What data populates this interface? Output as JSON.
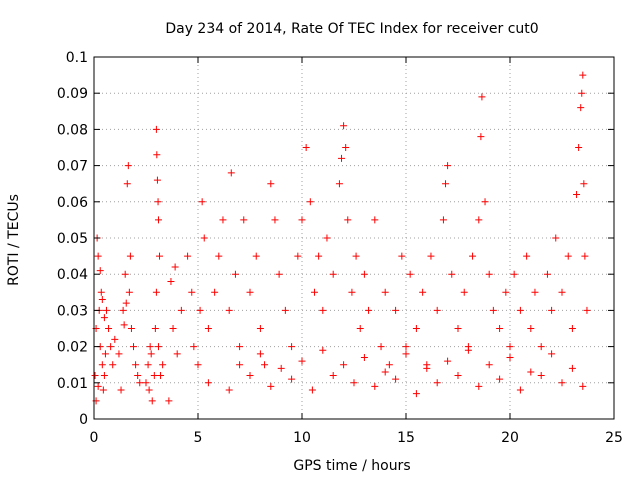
{
  "chart_data": {
    "type": "scatter",
    "title": "Day 234 of 2014, Rate Of TEC Index for receiver cut0",
    "xlabel": "GPS time / hours",
    "ylabel": "ROTI / TECUs",
    "xlim": [
      0,
      25
    ],
    "ylim": [
      0,
      0.1
    ],
    "xticks": [
      0,
      5,
      10,
      15,
      20,
      25
    ],
    "xtick_labels": [
      "0",
      "5",
      "10",
      "15",
      "20",
      "25"
    ],
    "yticks": [
      0,
      0.01,
      0.02,
      0.03,
      0.04,
      0.05,
      0.06,
      0.07,
      0.08,
      0.09,
      0.1
    ],
    "ytick_labels": [
      "0",
      "0.01",
      "0.02",
      "0.03",
      "0.04",
      "0.05",
      "0.06",
      "0.07",
      "0.08",
      "0.09",
      "0.1"
    ],
    "grid": true,
    "marker": "+",
    "color": "#ff0000",
    "series": [
      {
        "values": [
          [
            0.05,
            0.012
          ],
          [
            0.1,
            0.025
          ],
          [
            0.15,
            0.05
          ],
          [
            0.2,
            0.045
          ],
          [
            0.25,
            0.03
          ],
          [
            0.3,
            0.02
          ],
          [
            0.35,
            0.035
          ],
          [
            0.4,
            0.015
          ],
          [
            0.45,
            0.008
          ],
          [
            0.5,
            0.028
          ],
          [
            0.55,
            0.018
          ],
          [
            0.1,
            0.005
          ],
          [
            0.2,
            0.009
          ],
          [
            0.3,
            0.041
          ],
          [
            0.4,
            0.033
          ],
          [
            0.5,
            0.012
          ],
          [
            0.6,
            0.03
          ],
          [
            0.7,
            0.025
          ],
          [
            0.8,
            0.02
          ],
          [
            0.9,
            0.015
          ],
          [
            1.0,
            0.022
          ],
          [
            1.2,
            0.018
          ],
          [
            1.4,
            0.03
          ],
          [
            1.5,
            0.04
          ],
          [
            1.6,
            0.065
          ],
          [
            1.65,
            0.07
          ],
          [
            1.7,
            0.035
          ],
          [
            1.8,
            0.025
          ],
          [
            1.9,
            0.02
          ],
          [
            2.0,
            0.015
          ],
          [
            2.1,
            0.012
          ],
          [
            2.2,
            0.01
          ],
          [
            1.3,
            0.008
          ],
          [
            1.45,
            0.026
          ],
          [
            1.55,
            0.032
          ],
          [
            1.75,
            0.045
          ],
          [
            2.5,
            0.01
          ],
          [
            2.6,
            0.015
          ],
          [
            2.7,
            0.02
          ],
          [
            2.8,
            0.005
          ],
          [
            2.9,
            0.012
          ],
          [
            3.0,
            0.08
          ],
          [
            3.02,
            0.073
          ],
          [
            3.05,
            0.066
          ],
          [
            3.08,
            0.06
          ],
          [
            3.1,
            0.055
          ],
          [
            3.0,
            0.035
          ],
          [
            3.1,
            0.02
          ],
          [
            3.2,
            0.012
          ],
          [
            2.65,
            0.008
          ],
          [
            2.75,
            0.018
          ],
          [
            2.95,
            0.025
          ],
          [
            3.15,
            0.045
          ],
          [
            3.3,
            0.015
          ],
          [
            3.6,
            0.005
          ],
          [
            3.7,
            0.038
          ],
          [
            3.8,
            0.025
          ],
          [
            3.9,
            0.042
          ],
          [
            4.0,
            0.018
          ],
          [
            4.2,
            0.03
          ],
          [
            4.5,
            0.045
          ],
          [
            4.7,
            0.035
          ],
          [
            4.8,
            0.02
          ],
          [
            5.0,
            0.015
          ],
          [
            5.1,
            0.03
          ],
          [
            5.2,
            0.06
          ],
          [
            5.3,
            0.05
          ],
          [
            5.5,
            0.025
          ],
          [
            5.8,
            0.035
          ],
          [
            6.0,
            0.045
          ],
          [
            6.2,
            0.055
          ],
          [
            6.5,
            0.03
          ],
          [
            6.6,
            0.068
          ],
          [
            6.8,
            0.04
          ],
          [
            7.0,
            0.02
          ],
          [
            7.2,
            0.055
          ],
          [
            7.5,
            0.035
          ],
          [
            7.8,
            0.045
          ],
          [
            8.0,
            0.025
          ],
          [
            8.2,
            0.015
          ],
          [
            8.5,
            0.065
          ],
          [
            8.7,
            0.055
          ],
          [
            8.9,
            0.04
          ],
          [
            9.2,
            0.03
          ],
          [
            9.5,
            0.02
          ],
          [
            9.8,
            0.045
          ],
          [
            10.0,
            0.055
          ],
          [
            10.2,
            0.075
          ],
          [
            10.4,
            0.06
          ],
          [
            10.6,
            0.035
          ],
          [
            10.8,
            0.045
          ],
          [
            11.0,
            0.03
          ],
          [
            11.2,
            0.05
          ],
          [
            11.5,
            0.04
          ],
          [
            11.8,
            0.065
          ],
          [
            11.9,
            0.072
          ],
          [
            12.0,
            0.081
          ],
          [
            12.1,
            0.075
          ],
          [
            12.2,
            0.055
          ],
          [
            12.4,
            0.035
          ],
          [
            12.6,
            0.045
          ],
          [
            12.8,
            0.025
          ],
          [
            13.0,
            0.04
          ],
          [
            13.2,
            0.03
          ],
          [
            13.5,
            0.055
          ],
          [
            13.8,
            0.02
          ],
          [
            14.0,
            0.035
          ],
          [
            14.2,
            0.015
          ],
          [
            14.5,
            0.03
          ],
          [
            14.8,
            0.045
          ],
          [
            15.0,
            0.02
          ],
          [
            15.2,
            0.04
          ],
          [
            15.5,
            0.025
          ],
          [
            15.8,
            0.035
          ],
          [
            16.0,
            0.015
          ],
          [
            16.2,
            0.045
          ],
          [
            16.5,
            0.03
          ],
          [
            16.8,
            0.055
          ],
          [
            16.9,
            0.065
          ],
          [
            17.0,
            0.07
          ],
          [
            17.2,
            0.04
          ],
          [
            17.5,
            0.025
          ],
          [
            17.8,
            0.035
          ],
          [
            18.0,
            0.02
          ],
          [
            18.2,
            0.045
          ],
          [
            18.5,
            0.055
          ],
          [
            18.6,
            0.078
          ],
          [
            18.65,
            0.089
          ],
          [
            18.8,
            0.06
          ],
          [
            19.0,
            0.04
          ],
          [
            19.2,
            0.03
          ],
          [
            19.5,
            0.025
          ],
          [
            19.8,
            0.035
          ],
          [
            20.0,
            0.02
          ],
          [
            20.2,
            0.04
          ],
          [
            20.5,
            0.03
          ],
          [
            20.8,
            0.045
          ],
          [
            21.0,
            0.025
          ],
          [
            21.2,
            0.035
          ],
          [
            21.5,
            0.02
          ],
          [
            21.8,
            0.04
          ],
          [
            22.0,
            0.03
          ],
          [
            22.2,
            0.05
          ],
          [
            22.5,
            0.035
          ],
          [
            22.8,
            0.045
          ],
          [
            23.0,
            0.025
          ],
          [
            23.2,
            0.062
          ],
          [
            23.3,
            0.075
          ],
          [
            23.4,
            0.086
          ],
          [
            23.45,
            0.09
          ],
          [
            23.5,
            0.095
          ],
          [
            23.55,
            0.065
          ],
          [
            23.6,
            0.045
          ],
          [
            23.7,
            0.03
          ],
          [
            5.5,
            0.01
          ],
          [
            6.5,
            0.008
          ],
          [
            7.5,
            0.012
          ],
          [
            8.5,
            0.009
          ],
          [
            9.5,
            0.011
          ],
          [
            10.5,
            0.008
          ],
          [
            11.5,
            0.012
          ],
          [
            12.5,
            0.01
          ],
          [
            13.5,
            0.009
          ],
          [
            14.5,
            0.011
          ],
          [
            15.5,
            0.007
          ],
          [
            16.5,
            0.01
          ],
          [
            17.5,
            0.012
          ],
          [
            18.5,
            0.009
          ],
          [
            19.5,
            0.011
          ],
          [
            20.5,
            0.008
          ],
          [
            21.5,
            0.012
          ],
          [
            22.5,
            0.01
          ],
          [
            23.5,
            0.009
          ],
          [
            7.0,
            0.015
          ],
          [
            8.0,
            0.018
          ],
          [
            9.0,
            0.014
          ],
          [
            10.0,
            0.016
          ],
          [
            11.0,
            0.019
          ],
          [
            12.0,
            0.015
          ],
          [
            13.0,
            0.017
          ],
          [
            14.0,
            0.013
          ],
          [
            15.0,
            0.018
          ],
          [
            16.0,
            0.014
          ],
          [
            17.0,
            0.016
          ],
          [
            18.0,
            0.019
          ],
          [
            19.0,
            0.015
          ],
          [
            20.0,
            0.017
          ],
          [
            21.0,
            0.013
          ],
          [
            22.0,
            0.018
          ],
          [
            23.0,
            0.014
          ]
        ]
      }
    ]
  }
}
